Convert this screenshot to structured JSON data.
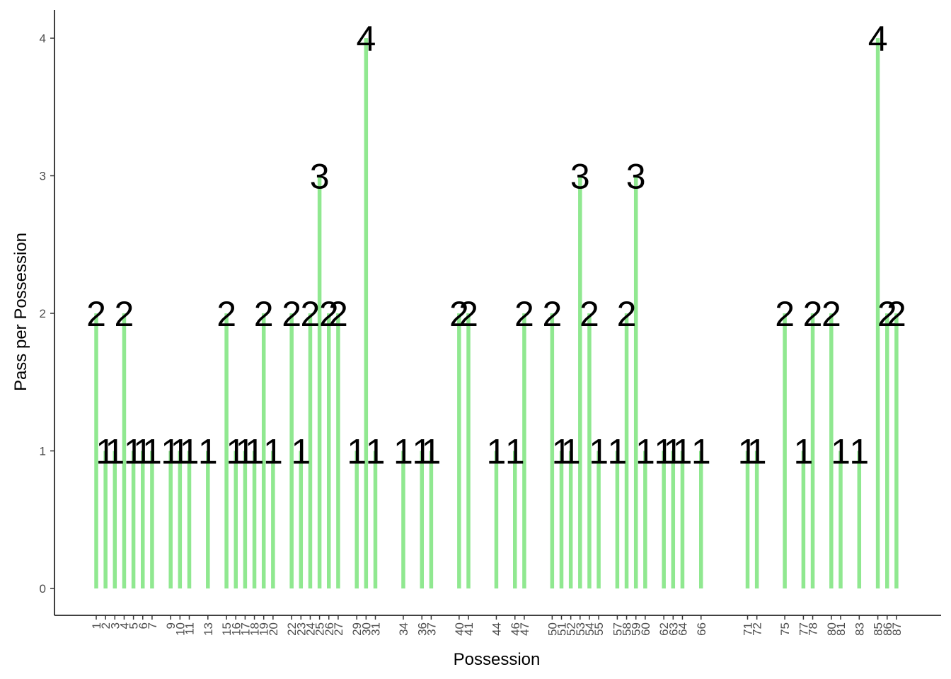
{
  "chart_data": {
    "type": "bar",
    "title": "",
    "xlabel": "Possession",
    "ylabel": "Pass per Possession",
    "ylim": [
      0,
      4
    ],
    "yticks": [
      0,
      1,
      2,
      3,
      4
    ],
    "grid": false,
    "bar_color": "#90e890",
    "x": [
      1,
      2,
      3,
      4,
      5,
      6,
      7,
      9,
      10,
      11,
      13,
      15,
      16,
      17,
      18,
      19,
      20,
      22,
      23,
      24,
      25,
      26,
      27,
      29,
      30,
      31,
      34,
      36,
      37,
      40,
      41,
      44,
      46,
      47,
      50,
      51,
      52,
      53,
      54,
      55,
      57,
      58,
      59,
      60,
      62,
      63,
      64,
      66,
      71,
      72,
      75,
      77,
      78,
      80,
      81,
      83,
      85,
      86,
      87
    ],
    "values": [
      2,
      1,
      1,
      2,
      1,
      1,
      1,
      1,
      1,
      1,
      1,
      2,
      1,
      1,
      1,
      2,
      1,
      2,
      1,
      2,
      3,
      2,
      2,
      1,
      4,
      1,
      1,
      1,
      1,
      2,
      2,
      1,
      1,
      2,
      2,
      1,
      1,
      3,
      2,
      1,
      1,
      2,
      3,
      1,
      1,
      1,
      1,
      1,
      1,
      1,
      2,
      1,
      2,
      2,
      1,
      1,
      4,
      2,
      2
    ]
  }
}
